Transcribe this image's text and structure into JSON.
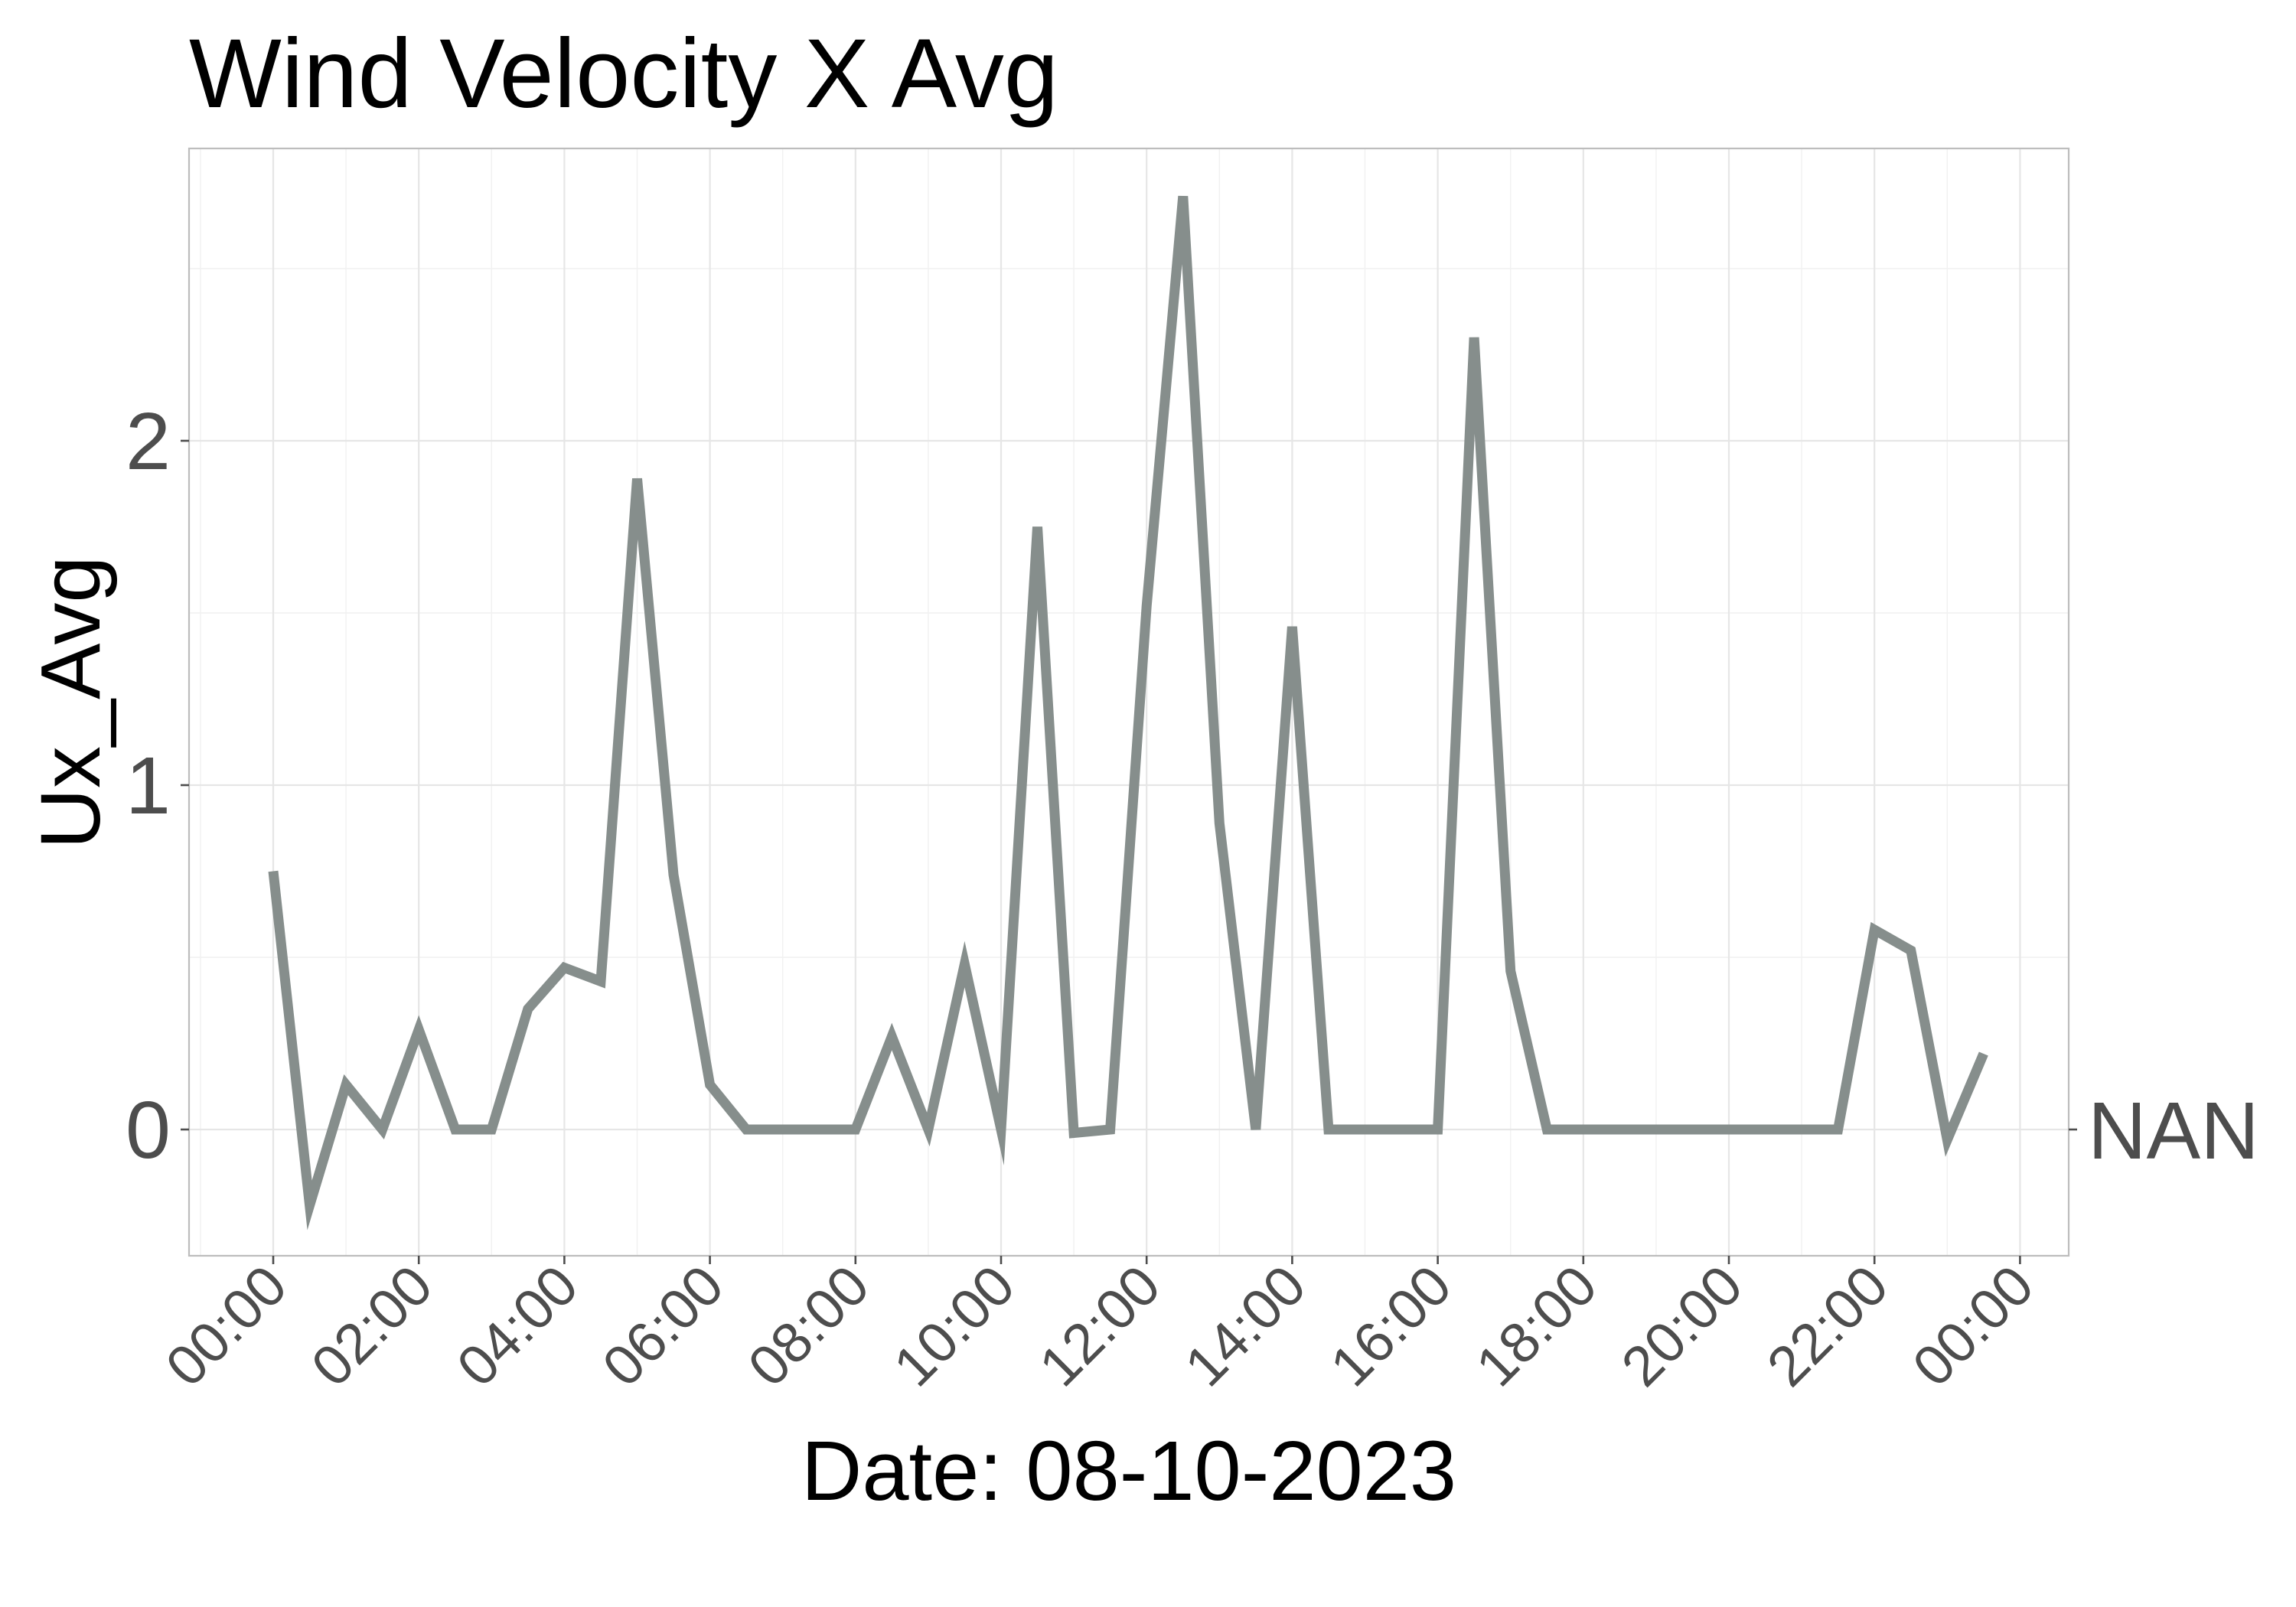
{
  "chart_data": {
    "type": "line",
    "title": "Wind Velocity X Avg",
    "xlabel": "Date: 08-10-2023",
    "ylabel": "Ux_Avg",
    "right_label": "NAN",
    "x_tick_labels": [
      "00:00",
      "02:00",
      "04:00",
      "06:00",
      "08:00",
      "10:00",
      "12:00",
      "14:00",
      "16:00",
      "18:00",
      "20:00",
      "22:00",
      "00:00"
    ],
    "y_ticks": [
      0,
      1,
      2
    ],
    "y_tick_labels": [
      "0",
      "1",
      "2"
    ],
    "xlim": [
      "2023-10-08 00:00",
      "2023-10-09 00:00"
    ],
    "ylim": [
      -0.37,
      2.85
    ],
    "grid": true,
    "line_color": "#868e8c",
    "series": [
      {
        "x": [
          "00:00",
          "00:30",
          "01:00",
          "01:30",
          "02:00",
          "02:30",
          "03:00",
          "03:30",
          "04:00",
          "04:30",
          "05:00",
          "05:30",
          "06:00",
          "06:30",
          "07:00",
          "07:30",
          "08:00",
          "08:30",
          "09:00",
          "09:30",
          "10:00",
          "10:30",
          "11:00",
          "11:30",
          "12:00",
          "12:30",
          "13:00",
          "13:30",
          "14:00",
          "14:30",
          "15:00",
          "15:30",
          "16:00",
          "16:30",
          "17:00",
          "17:30",
          "18:00",
          "18:30",
          "19:00",
          "19:30",
          "20:00",
          "20:30",
          "21:00",
          "21:30",
          "22:00",
          "22:30",
          "23:00",
          "23:30"
        ],
        "values": [
          0.75,
          -0.22,
          0.13,
          0.0,
          0.29,
          0.0,
          0.0,
          0.35,
          0.47,
          0.43,
          1.89,
          0.74,
          0.13,
          0.0,
          0.0,
          0.0,
          0.0,
          0.27,
          0.0,
          0.48,
          0.0,
          1.75,
          -0.01,
          0.0,
          1.52,
          2.71,
          0.89,
          0.0,
          1.46,
          0.0,
          0.0,
          0.0,
          0.0,
          2.3,
          0.46,
          0.0,
          0.0,
          0.0,
          0.0,
          0.0,
          0.0,
          0.0,
          0.0,
          0.0,
          0.58,
          0.52,
          -0.03,
          0.22
        ]
      }
    ]
  }
}
